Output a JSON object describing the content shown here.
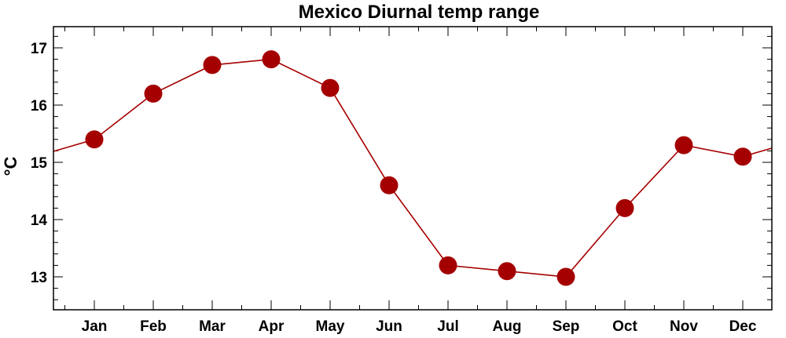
{
  "chart_data": {
    "type": "line",
    "title": "Mexico Diurnal temp range",
    "xlabel": "",
    "ylabel": "°C",
    "categories": [
      "Jan",
      "Feb",
      "Mar",
      "Apr",
      "May",
      "Jun",
      "Jul",
      "Aug",
      "Sep",
      "Oct",
      "Nov",
      "Dec"
    ],
    "series": [
      {
        "values": [
          15.4,
          16.2,
          16.7,
          16.8,
          16.3,
          14.6,
          13.2,
          13.1,
          13.0,
          14.2,
          15.3,
          15.1
        ]
      }
    ],
    "ylim": [
      12.4,
      17.4
    ],
    "yticks": [
      13,
      14,
      15,
      16,
      17
    ],
    "color": "#a50000",
    "grid": false,
    "wraps_cyclically": true
  }
}
